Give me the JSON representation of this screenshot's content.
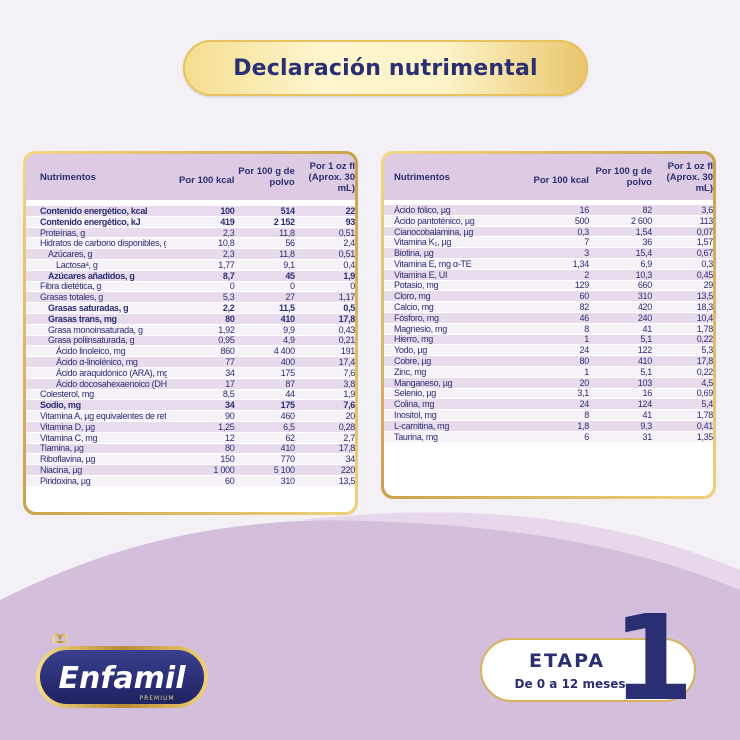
{
  "title": "Declaración nutrimental",
  "left_table": {
    "headers": [
      "Nutrimentos",
      "Por 100 kcal",
      "Por 100 g de polvo",
      "Por 1 oz fl (Aprox. 30 mL)"
    ],
    "rows": [
      {
        "name": "Contenido energético, kcal",
        "v1": "100",
        "v2": "514",
        "v3": "22",
        "bold": true,
        "indent": 0
      },
      {
        "name": "Contenido energético, kJ",
        "v1": "419",
        "v2": "2 152",
        "v3": "93",
        "bold": true,
        "indent": 0
      },
      {
        "name": "Proteínas, g",
        "v1": "2,3",
        "v2": "11,8",
        "v3": "0,51",
        "bold": false,
        "indent": 0
      },
      {
        "name": "Hidratos de carbono disponibles, g",
        "v1": "10,8",
        "v2": "56",
        "v3": "2,4",
        "bold": false,
        "indent": 0
      },
      {
        "name": "Azúcares, g",
        "v1": "2,3",
        "v2": "11,8",
        "v3": "0,51",
        "bold": false,
        "indent": 1
      },
      {
        "name": "Lactosaᵃ, g",
        "v1": "1,77",
        "v2": "9,1",
        "v3": "0,4",
        "bold": false,
        "indent": 2
      },
      {
        "name": "Azúcares añadidos, g",
        "v1": "8,7",
        "v2": "45",
        "v3": "1,9",
        "bold": true,
        "indent": 1
      },
      {
        "name": "Fibra dietética, g",
        "v1": "0",
        "v2": "0",
        "v3": "0",
        "bold": false,
        "indent": 0
      },
      {
        "name": "Grasas totales, g",
        "v1": "5,3",
        "v2": "27",
        "v3": "1,17",
        "bold": false,
        "indent": 0
      },
      {
        "name": "Grasas saturadas, g",
        "v1": "2,2",
        "v2": "11,5",
        "v3": "0,5",
        "bold": true,
        "indent": 1
      },
      {
        "name": "Grasas trans, mg",
        "v1": "80",
        "v2": "410",
        "v3": "17,8",
        "bold": true,
        "indent": 1
      },
      {
        "name": "Grasa monoinsaturada, g",
        "v1": "1,92",
        "v2": "9,9",
        "v3": "0,43",
        "bold": false,
        "indent": 1
      },
      {
        "name": "Grasa poliinsaturada, g",
        "v1": "0,95",
        "v2": "4,9",
        "v3": "0,21",
        "bold": false,
        "indent": 1
      },
      {
        "name": "Ácido linoleico, mg",
        "v1": "860",
        "v2": "4 400",
        "v3": "191",
        "bold": false,
        "indent": 2
      },
      {
        "name": "Ácido α-linolénico, mg",
        "v1": "77",
        "v2": "400",
        "v3": "17,4",
        "bold": false,
        "indent": 2
      },
      {
        "name": "Ácido araquidónico (ARA), mg",
        "v1": "34",
        "v2": "175",
        "v3": "7,6",
        "bold": false,
        "indent": 2
      },
      {
        "name": "Ácido docosahexaenoico (DHA), mg",
        "v1": "17",
        "v2": "87",
        "v3": "3,8",
        "bold": false,
        "indent": 2
      },
      {
        "name": "Colesterol, mg",
        "v1": "8,5",
        "v2": "44",
        "v3": "1,9",
        "bold": false,
        "indent": 0
      },
      {
        "name": "Sodio, mg",
        "v1": "34",
        "v2": "175",
        "v3": "7,6",
        "bold": true,
        "indent": 0
      },
      {
        "name": "Vitamina A, µg equivalentes de retinol",
        "v1": "90",
        "v2": "460",
        "v3": "20",
        "bold": false,
        "indent": 0
      },
      {
        "name": "Vitamina D, µg",
        "v1": "1,25",
        "v2": "6,5",
        "v3": "0,28",
        "bold": false,
        "indent": 0
      },
      {
        "name": "Vitamina C, mg",
        "v1": "12",
        "v2": "62",
        "v3": "2,7",
        "bold": false,
        "indent": 0
      },
      {
        "name": "Tiamina, µg",
        "v1": "80",
        "v2": "410",
        "v3": "17,8",
        "bold": false,
        "indent": 0
      },
      {
        "name": "Riboflavina, µg",
        "v1": "150",
        "v2": "770",
        "v3": "34",
        "bold": false,
        "indent": 0
      },
      {
        "name": "Niacina, µg",
        "v1": "1 000",
        "v2": "5 100",
        "v3": "220",
        "bold": false,
        "indent": 0
      },
      {
        "name": "Piridoxina, µg",
        "v1": "60",
        "v2": "310",
        "v3": "13,5",
        "bold": false,
        "indent": 0
      }
    ]
  },
  "right_table": {
    "headers": [
      "Nutrimentos",
      "Por 100 kcal",
      "Por 100 g de polvo",
      "Por 1 oz fl (Aprox. 30 mL)"
    ],
    "rows": [
      {
        "name": "Ácido fólico, µg",
        "v1": "16",
        "v2": "82",
        "v3": "3,6"
      },
      {
        "name": "Ácido pantoténico, µg",
        "v1": "500",
        "v2": "2 600",
        "v3": "113"
      },
      {
        "name": "Cianocobalamina, µg",
        "v1": "0,3",
        "v2": "1,54",
        "v3": "0,07"
      },
      {
        "name": "Vitamina K₁, µg",
        "v1": "7",
        "v2": "36",
        "v3": "1,57"
      },
      {
        "name": "Biotina, µg",
        "v1": "3",
        "v2": "15,4",
        "v3": "0,67"
      },
      {
        "name": "Vitamina E, mg α-TE",
        "v1": "1,34",
        "v2": "6,9",
        "v3": "0,3"
      },
      {
        "name": "Vitamina E, UI",
        "v1": "2",
        "v2": "10,3",
        "v3": "0,45"
      },
      {
        "name": "Potasio, mg",
        "v1": "129",
        "v2": "660",
        "v3": "29"
      },
      {
        "name": "Cloro, mg",
        "v1": "60",
        "v2": "310",
        "v3": "13,5"
      },
      {
        "name": "Calcio, mg",
        "v1": "82",
        "v2": "420",
        "v3": "18,3"
      },
      {
        "name": "Fósforo, mg",
        "v1": "46",
        "v2": "240",
        "v3": "10,4"
      },
      {
        "name": "Magnesio, mg",
        "v1": "8",
        "v2": "41",
        "v3": "1,78"
      },
      {
        "name": "Hierro, mg",
        "v1": "1",
        "v2": "5,1",
        "v3": "0,22"
      },
      {
        "name": "Yodo, µg",
        "v1": "24",
        "v2": "122",
        "v3": "5,3"
      },
      {
        "name": "Cobre, µg",
        "v1": "80",
        "v2": "410",
        "v3": "17,8"
      },
      {
        "name": "Zinc, mg",
        "v1": "1",
        "v2": "5,1",
        "v3": "0,22"
      },
      {
        "name": "Manganeso, µg",
        "v1": "20",
        "v2": "103",
        "v3": "4,5"
      },
      {
        "name": "Selenio, µg",
        "v1": "3,1",
        "v2": "16",
        "v3": "0,69"
      },
      {
        "name": "Colina, mg",
        "v1": "24",
        "v2": "124",
        "v3": "5,4"
      },
      {
        "name": "Inositol, mg",
        "v1": "8",
        "v2": "41",
        "v3": "1,78"
      },
      {
        "name": "L-carnitina, mg",
        "v1": "1,8",
        "v2": "9,3",
        "v3": "0,41"
      },
      {
        "name": "Taurina, mg",
        "v1": "6",
        "v2": "31",
        "v3": "1,35"
      }
    ]
  },
  "logo": {
    "brand": "Enfamil",
    "sub": "PREMIUM"
  },
  "stage": {
    "label": "ETAPA",
    "sub": "De 0 a 12 meses",
    "number": "1"
  },
  "colors": {
    "navy": "#2a2e72",
    "gold": "#d9b25c",
    "lilac": "#dccbe3",
    "bg_purple": "#d3bedb"
  }
}
